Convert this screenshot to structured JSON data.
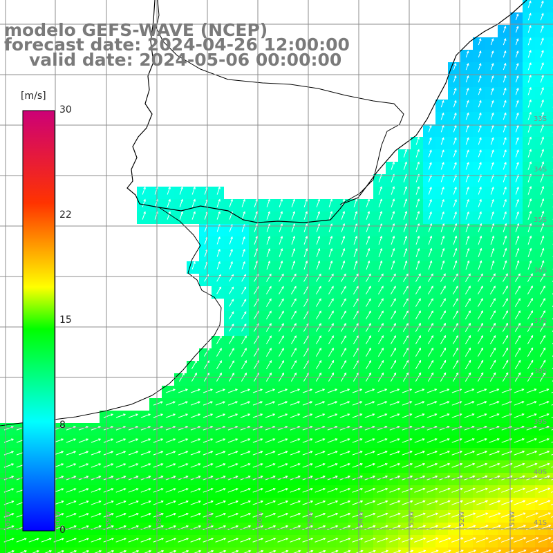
{
  "title": {
    "line1": "modelo GEFS-WAVE (NCEP)",
    "line2": "forecast date: 2024-04-26 12:00:00",
    "line3": "valid date: 2024-05-06 00:00:00"
  },
  "colorbar": {
    "unit": "[m/s]",
    "min": 0,
    "max": 30,
    "ticks": [
      "30",
      "22",
      "15",
      "8",
      "0"
    ],
    "tick_values": [
      30,
      22,
      15,
      8,
      0
    ],
    "stops": [
      "#0000ff",
      "#00ffff",
      "#00ff00",
      "#ffff00",
      "#ff0000",
      "#cc0077"
    ]
  },
  "map": {
    "field": "wind speed",
    "lat_labels": [
      "33S",
      "34S",
      "35S",
      "36S",
      "37S",
      "38S",
      "39S",
      "40S",
      "41S"
    ],
    "lon_labels": [
      "61W",
      "60W",
      "59W",
      "58W",
      "57W",
      "56W",
      "55W",
      "54W",
      "53W",
      "52W",
      "51W"
    ],
    "land_color": "#ffffff",
    "grid_color": "#8c8c8c",
    "coast_color": "#000000"
  }
}
